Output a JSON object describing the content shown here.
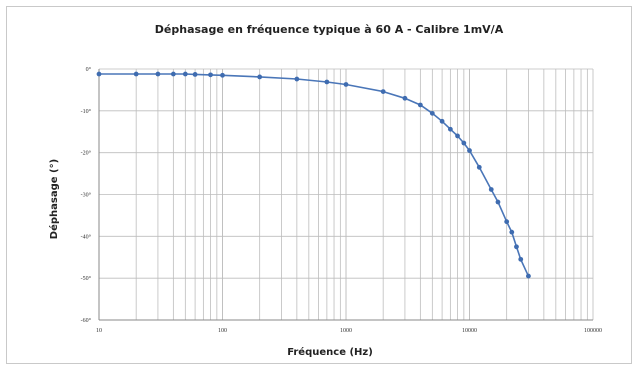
{
  "chart_data": {
    "type": "line",
    "title": "Déphasage en fréquence typique à 60 A - Calibre 1mV/A",
    "xlabel": "Fréquence (Hz)",
    "ylabel": "Déphasage (°)",
    "x_scale": "log",
    "xlim": [
      10,
      100000
    ],
    "ylim": [
      -60,
      0
    ],
    "x_tick_labels": [
      "10",
      "100",
      "1000",
      "10000",
      "100000"
    ],
    "y_tick_labels": [
      "0°",
      "-10°",
      "-20°",
      "-30°",
      "-40°",
      "-50°",
      "-60°"
    ],
    "grid": true,
    "legend": "none",
    "series_color": "#4a76b8",
    "series": [
      {
        "x": [
          10,
          20,
          30,
          40,
          50,
          60,
          80,
          100,
          200,
          400,
          700,
          1000,
          2000,
          3000,
          4000,
          5000,
          6000,
          7000,
          8000,
          9000,
          10000,
          12000,
          15000,
          17000,
          20000,
          22000,
          24000,
          26000,
          30000
        ],
        "values": [
          -1.2,
          -1.2,
          -1.2,
          -1.2,
          -1.2,
          -1.3,
          -1.4,
          -1.5,
          -1.9,
          -2.4,
          -3.1,
          -3.7,
          -5.4,
          -7.0,
          -8.6,
          -10.6,
          -12.5,
          -14.4,
          -16.0,
          -17.7,
          -19.5,
          -23.5,
          -28.8,
          -31.8,
          -36.5,
          -39.0,
          -42.5,
          -45.5,
          -49.5
        ]
      }
    ]
  }
}
